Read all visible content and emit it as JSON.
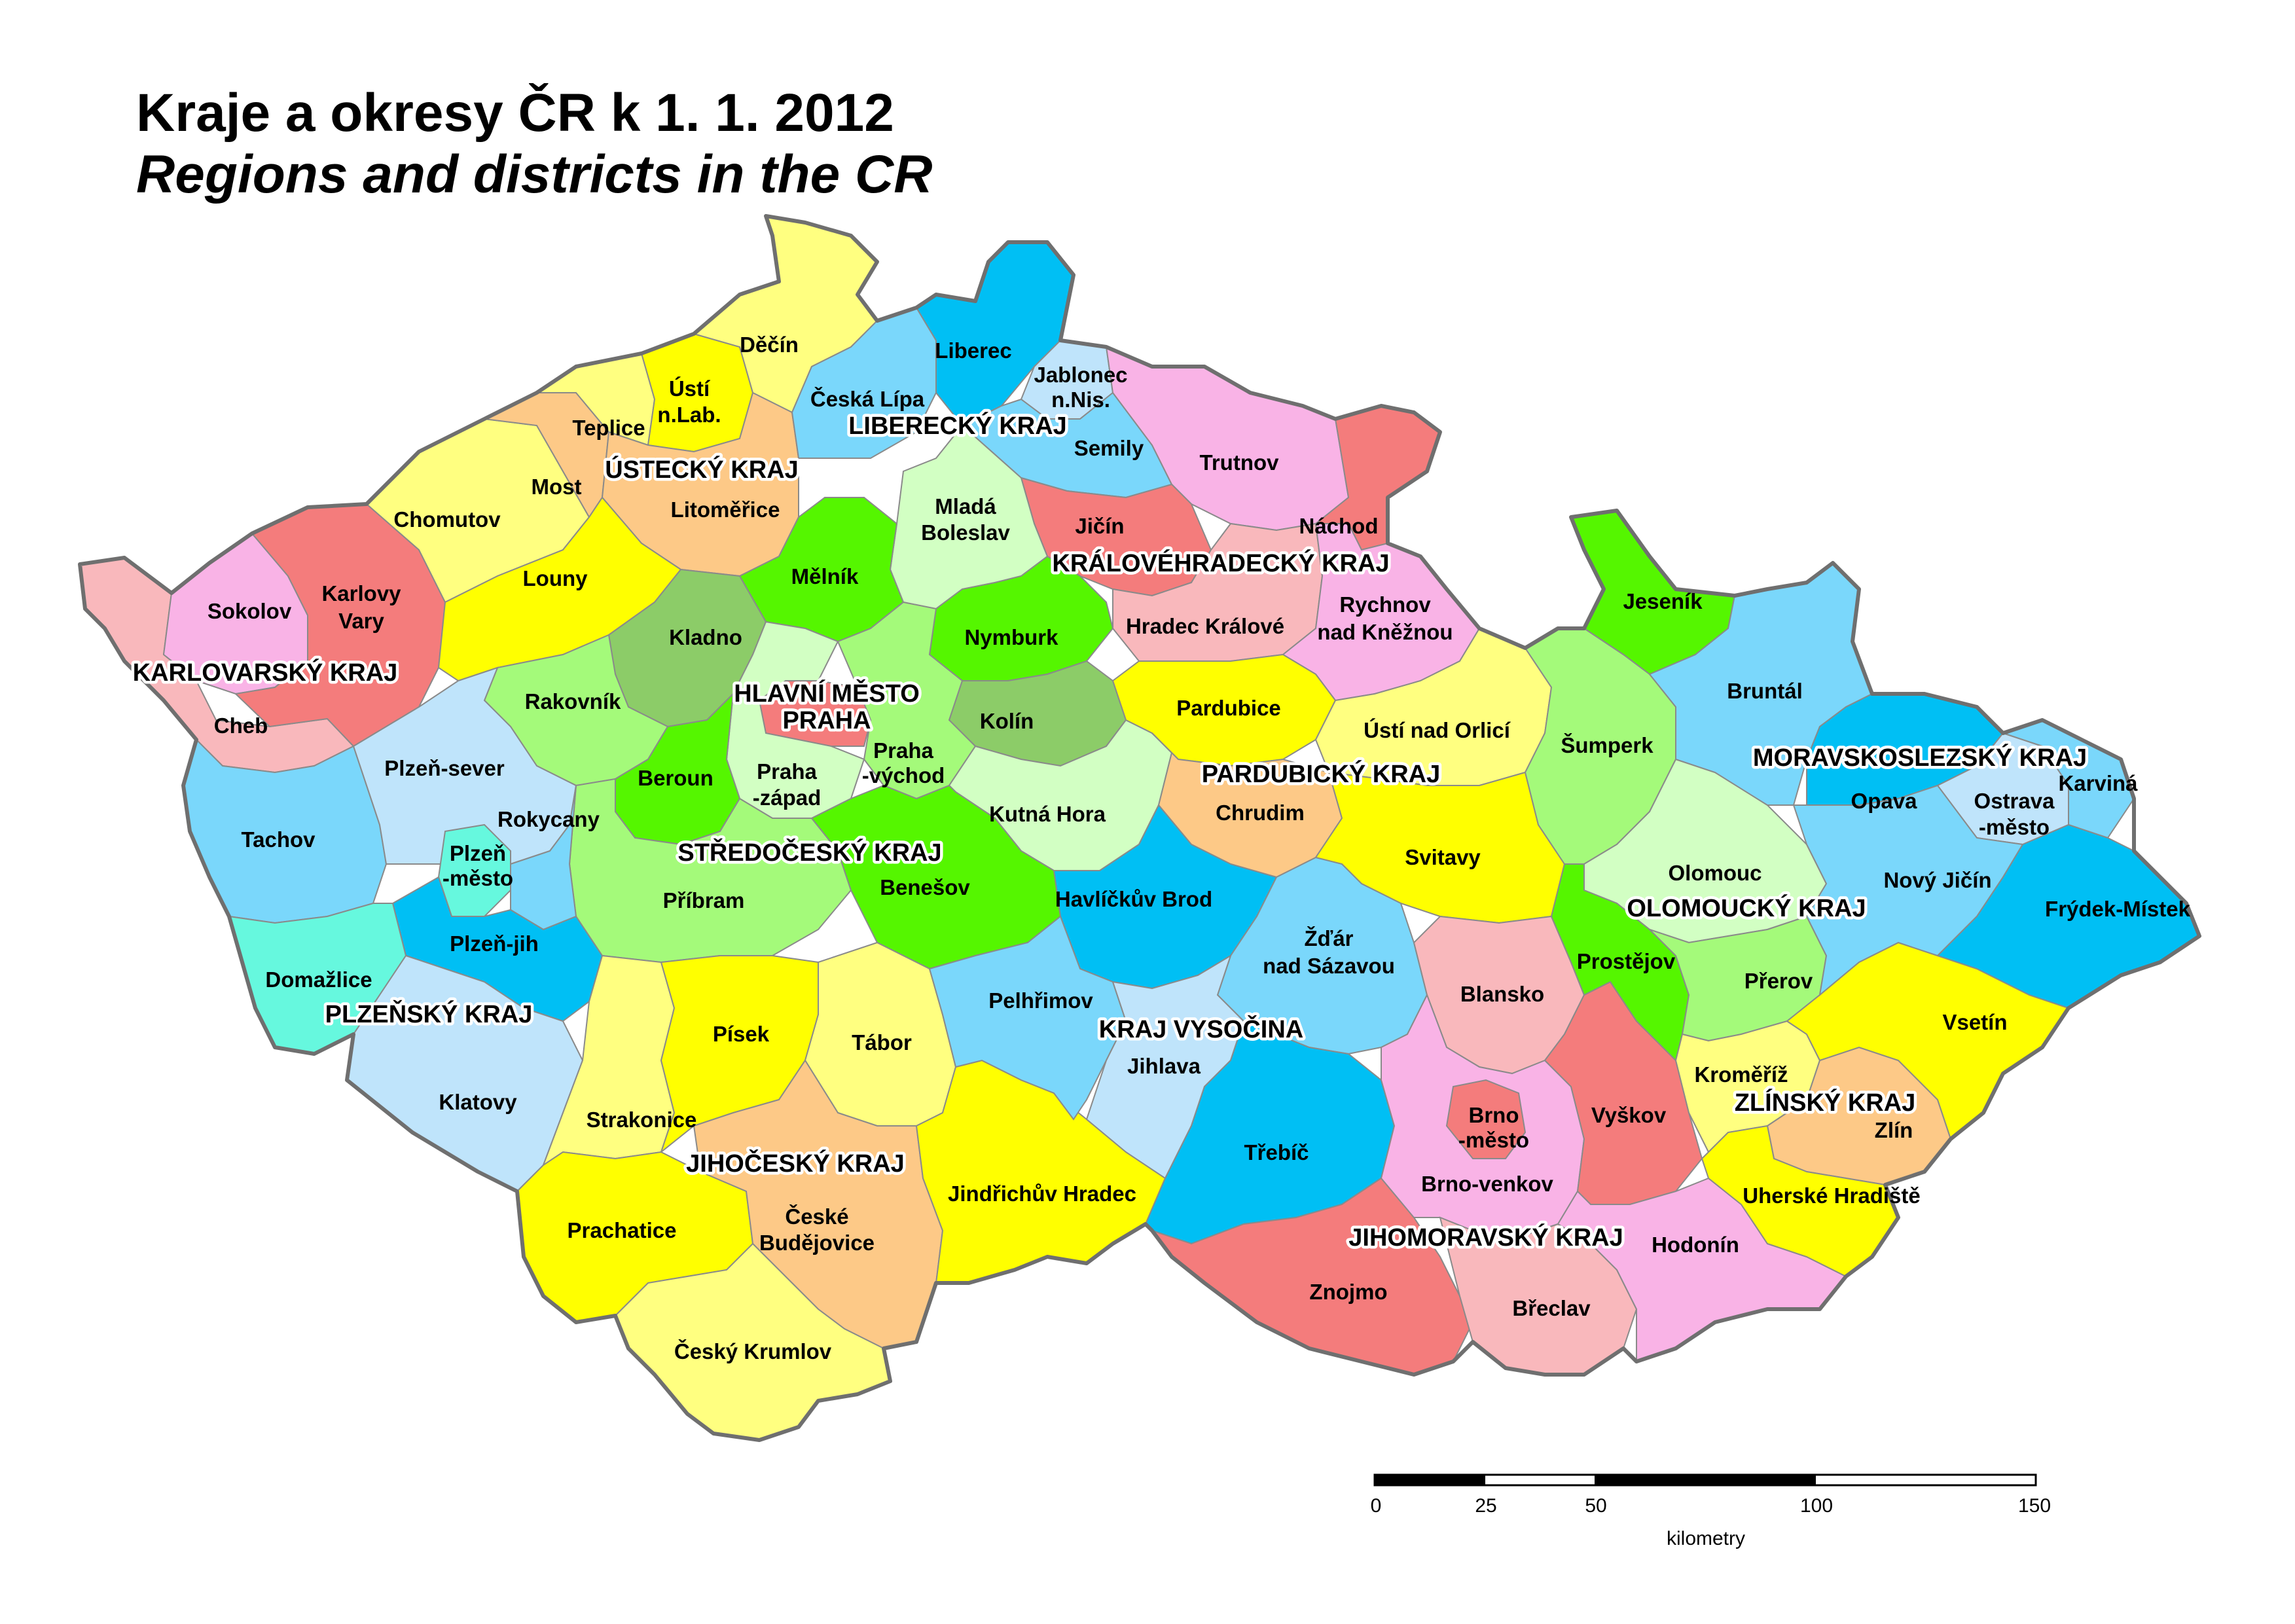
{
  "title": "Kraje a okresy ČR k 1. 1. 2012",
  "subtitle": "Regions and districts in the CR",
  "palette": {
    "red": "#f47c7c",
    "pink": "#f9b3e6",
    "rose": "#f9b8bc",
    "yellow": "#ffff00",
    "paleyellow": "#ffff80",
    "peach": "#fdc987",
    "green": "#55f600",
    "lightgreen": "#a4fa7a",
    "midgreen": "#8ccc68",
    "palegreen": "#d2ffc3",
    "blue": "#00bff4",
    "skyblue": "#7ad7fb",
    "paleblue": "#bfe4fb",
    "aqua": "#66f8de"
  },
  "regions": {
    "karlovarsky": "KARLOVARSKÝ KRAJ",
    "ustecky": "ÚSTECKÝ KRAJ",
    "liberecky": "LIBERECKÝ KRAJ",
    "kralovehradecky": "KRÁLOVÉHRADECKÝ KRAJ",
    "pardubicky": "PARDUBICKÝ KRAJ",
    "praha_1": "HLAVNÍ MĚSTO",
    "praha_2": "PRAHA",
    "stredocesky": "STŘEDOČESKÝ KRAJ",
    "plzensky": "PLZEŇSKÝ KRAJ",
    "jihocesky": "JIHOČESKÝ KRAJ",
    "vysocina": "KRAJ VYSOČINA",
    "jihomoravsky": "JIHOMORAVSKÝ KRAJ",
    "olomoucky": "OLOMOUCKÝ KRAJ",
    "zlinsky": "ZLÍNSKÝ KRAJ",
    "moravskoslezsky": "MORAVSKOSLEZSKÝ KRAJ"
  },
  "districts": {
    "decin": "Děčín",
    "usti_1": "Ústí",
    "usti_2": "n.Lab.",
    "teplice": "Teplice",
    "most": "Most",
    "chomutov": "Chomutov",
    "litomerice": "Litoměřice",
    "louny": "Louny",
    "ceska_lipa": "Česká Lípa",
    "liberec": "Liberec",
    "jablonec_1": "Jablonec",
    "jablonec_2": "n.Nis.",
    "semily": "Semily",
    "trutnov": "Trutnov",
    "nachod": "Náchod",
    "jicin": "Jičín",
    "hradec": "Hradec Králové",
    "rychnov_1": "Rychnov",
    "rychnov_2": "nad Kněžnou",
    "sokolov": "Sokolov",
    "karlovy_1": "Karlovy",
    "karlovy_2": "Vary",
    "cheb": "Cheb",
    "mlada_1": "Mladá",
    "mlada_2": "Boleslav",
    "melnik": "Mělník",
    "kladno": "Kladno",
    "nymburk": "Nymburk",
    "rakovnik": "Rakovník",
    "kolin": "Kolín",
    "beroun": "Beroun",
    "praha_zapad_1": "Praha",
    "praha_zapad_2": "-západ",
    "praha_vychod_1": "Praha",
    "praha_vychod_2": "-východ",
    "kutna_hora": "Kutná Hora",
    "pribram": "Příbram",
    "benesov": "Benešov",
    "pardubice": "Pardubice",
    "usti_orlici": "Ústí nad Orlicí",
    "chrudim": "Chrudim",
    "svitavy": "Svitavy",
    "plzen_sever": "Plzeň-sever",
    "rokycany": "Rokycany",
    "tachov": "Tachov",
    "plzen_mesto_1": "Plzeň",
    "plzen_mesto_2": "-město",
    "plzen_jih": "Plzeň-jih",
    "domazlice": "Domažlice",
    "klatovy": "Klatovy",
    "pisek": "Písek",
    "tabor": "Tábor",
    "strakonice": "Strakonice",
    "prachatice": "Prachatice",
    "ceske_bud_1": "České",
    "ceske_bud_2": "Budějovice",
    "jindrichuv": "Jindřichův Hradec",
    "cesky_krumlov": "Český Krumlov",
    "havlickuv": "Havlíčkův Brod",
    "zdar_1": "Žďár",
    "zdar_2": "nad Sázavou",
    "pelhrimov": "Pelhřimov",
    "jihlava": "Jihlava",
    "trebic": "Třebíč",
    "znojmo": "Znojmo",
    "blansko": "Blansko",
    "brno_mesto_1": "Brno",
    "brno_mesto_2": "-město",
    "brno_venkov": "Brno-venkov",
    "vyskov": "Vyškov",
    "hodonin": "Hodonín",
    "breclav": "Břeclav",
    "jesenik": "Jeseník",
    "sumperk": "Šumperk",
    "olomouc": "Olomouc",
    "prostejov": "Prostějov",
    "prerov": "Přerov",
    "bruntal": "Bruntál",
    "opava": "Opava",
    "ostrava_1": "Ostrava",
    "ostrava_2": "-město",
    "karvina": "Karviná",
    "novy_jicin": "Nový Jičín",
    "frydek": "Frýdek-Místek",
    "vsetin": "Vsetín",
    "kromeriz": "Kroměříž",
    "zlin": "Zlín",
    "uherske": "Uherské Hradiště"
  },
  "scale_bar": {
    "ticks": [
      "0",
      "25",
      "50",
      "100",
      "150"
    ],
    "unit": "kilometry"
  }
}
